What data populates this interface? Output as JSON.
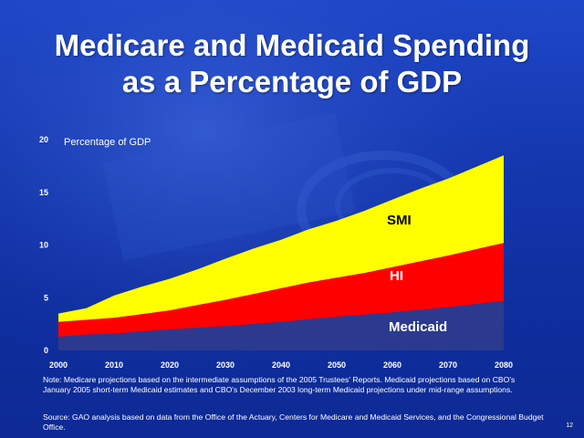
{
  "slide": {
    "title_line1": "Medicare and Medicaid Spending",
    "title_line2": "as a Percentage of GDP",
    "note": "Note:  Medicare projections based on the intermediate assumptions of the 2005 Trustees' Reports.  Medicaid projections based on CBO's January 2005 short-term Medicaid estimates and CBO's December 2003 long-term Medicaid projections under mid-range assumptions.",
    "source": "Source:  GAO analysis based on data from the Office of the Actuary, Centers for Medicare and Medicaid Services, and the Congressional Budget Office.",
    "page_number": "12",
    "colors": {
      "background": "#1538b0",
      "medicaid": "#2b3a8f",
      "hi": "#ff0000",
      "smi": "#ffff00"
    }
  },
  "chart_data": {
    "type": "area",
    "stacked": true,
    "title": "Medicare and Medicaid Spending as a Percentage of GDP",
    "ylabel": "Percentage of GDP",
    "xlabel": "",
    "x": [
      2000,
      2005,
      2010,
      2015,
      2020,
      2025,
      2030,
      2035,
      2040,
      2045,
      2050,
      2055,
      2060,
      2065,
      2070,
      2075,
      2080
    ],
    "xticks": [
      "2000",
      "2010",
      "2020",
      "2030",
      "2040",
      "2050",
      "2060",
      "2070",
      "2080"
    ],
    "yticks": [
      "0",
      "5",
      "10",
      "15",
      "20"
    ],
    "xlim": [
      2000,
      2080
    ],
    "ylim": [
      0,
      20
    ],
    "grid": false,
    "series": [
      {
        "name": "Medicaid",
        "values": [
          1.3,
          1.5,
          1.6,
          1.8,
          2.0,
          2.15,
          2.3,
          2.5,
          2.7,
          2.95,
          3.2,
          3.4,
          3.6,
          3.85,
          4.1,
          4.4,
          4.7
        ]
      },
      {
        "name": "HI",
        "values": [
          1.4,
          1.4,
          1.5,
          1.65,
          1.8,
          2.15,
          2.5,
          2.85,
          3.2,
          3.5,
          3.7,
          3.95,
          4.3,
          4.6,
          4.9,
          5.2,
          5.5
        ]
      },
      {
        "name": "SMI",
        "values": [
          0.8,
          1.1,
          2.1,
          2.6,
          3.0,
          3.4,
          3.9,
          4.3,
          4.6,
          5.05,
          5.4,
          5.9,
          6.4,
          6.9,
          7.3,
          7.8,
          8.3
        ]
      }
    ],
    "labels": {
      "smi": "SMI",
      "hi": "HI",
      "medicaid": "Medicaid"
    }
  }
}
